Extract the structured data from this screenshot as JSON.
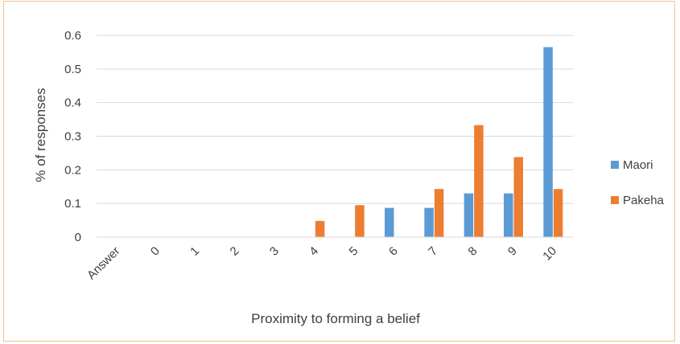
{
  "chart_data": {
    "type": "bar",
    "title": "",
    "xlabel": "Proximity to forming a belief",
    "ylabel": "% of responses",
    "categories": [
      "Answer",
      "0",
      "1",
      "2",
      "3",
      "4",
      "5",
      "6",
      "7",
      "8",
      "9",
      "10"
    ],
    "ylim": [
      0,
      0.6
    ],
    "yticks": [
      "0",
      "0.1",
      "0.2",
      "0.3",
      "0.4",
      "0.5",
      "0.6"
    ],
    "grid": true,
    "legend_position": "right",
    "series": [
      {
        "name": "Maori",
        "color": "#5b9bd5",
        "values": [
          0,
          0,
          0,
          0,
          0,
          0,
          0,
          0.087,
          0.087,
          0.13,
          0.13,
          0.565
        ]
      },
      {
        "name": "Pakeha",
        "color": "#ed7d31",
        "values": [
          0,
          0,
          0,
          0,
          0,
          0.048,
          0.095,
          0,
          0.143,
          0.333,
          0.238,
          0.143
        ]
      }
    ]
  }
}
